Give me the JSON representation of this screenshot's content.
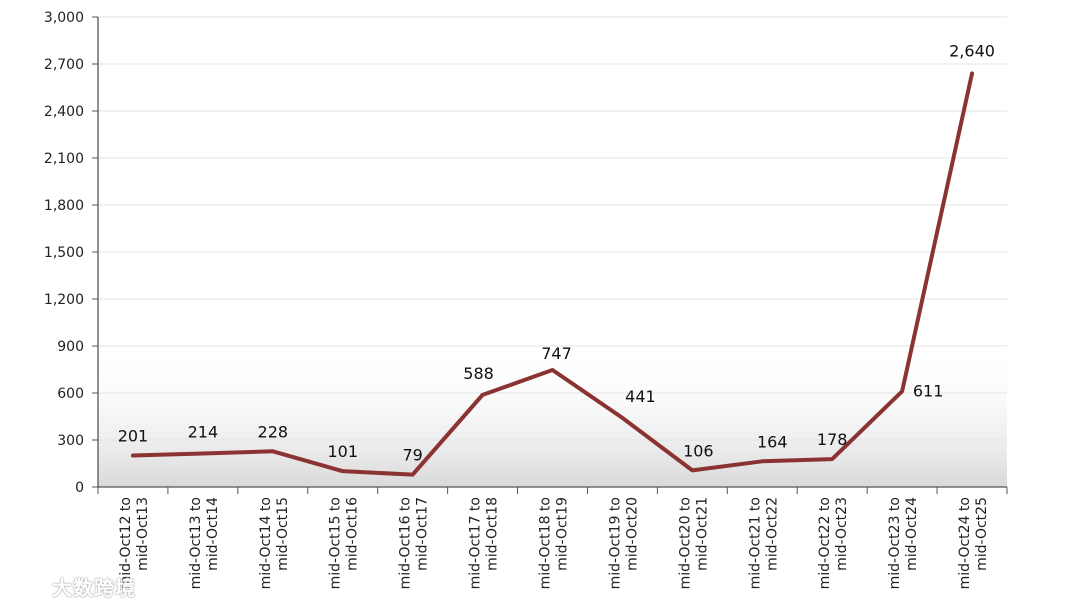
{
  "chart_data": {
    "type": "line",
    "categories": [
      "mid-Oct12 to mid-Oct13",
      "mid-Oct13 to mid-Oct14",
      "mid-Oct14 to mid-Oct15",
      "mid-Oct15 to mid-Oct16",
      "mid-Oct16 to mid-Oct17",
      "mid-Oct17 to mid-Oct18",
      "mid-Oct18 to mid-Oct19",
      "mid-Oct19 to mid-Oct20",
      "mid-Oct20 to mid-Oct21",
      "mid-Oct21 to mid-Oct22",
      "mid-Oct22 to mid-Oct23",
      "mid-Oct23 to mid-Oct24",
      "mid-Oct24 to mid-Oct25"
    ],
    "category_lines": [
      [
        "mid-Oct12 to",
        "mid-Oct13"
      ],
      [
        "mid-Oct13 to",
        "mid-Oct14"
      ],
      [
        "mid-Oct14 to",
        "mid-Oct15"
      ],
      [
        "mid-Oct15 to",
        "mid-Oct16"
      ],
      [
        "mid-Oct16 to",
        "mid-Oct17"
      ],
      [
        "mid-Oct17 to",
        "mid-Oct18"
      ],
      [
        "mid-Oct18 to",
        "mid-Oct19"
      ],
      [
        "mid-Oct19 to",
        "mid-Oct20"
      ],
      [
        "mid-Oct20 to",
        "mid-Oct21"
      ],
      [
        "mid-Oct21 to",
        "mid-Oct22"
      ],
      [
        "mid-Oct22 to",
        "mid-Oct23"
      ],
      [
        "mid-Oct23 to",
        "mid-Oct24"
      ],
      [
        "mid-Oct24 to",
        "mid-Oct25"
      ]
    ],
    "values": [
      201,
      214,
      228,
      101,
      79,
      588,
      747,
      441,
      106,
      164,
      178,
      611,
      2640
    ],
    "data_labels": [
      "201",
      "214",
      "228",
      "101",
      "79",
      "588",
      "747",
      "441",
      "106",
      "164",
      "178",
      "611",
      "2,640"
    ],
    "y_ticks": [
      0,
      300,
      600,
      900,
      1200,
      1500,
      1800,
      2100,
      2400,
      2700,
      3000
    ],
    "y_tick_labels": [
      "0",
      "300",
      "600",
      "900",
      "1,200",
      "1,500",
      "1,800",
      "2,100",
      "2,400",
      "2,700",
      "3,000"
    ],
    "ylim": [
      0,
      3000
    ],
    "grid": true,
    "line_color": "#8b3333",
    "title": "",
    "xlabel": "",
    "ylabel": ""
  },
  "watermark": {
    "text": "大数跨境",
    "logo": "watermark-logo"
  }
}
